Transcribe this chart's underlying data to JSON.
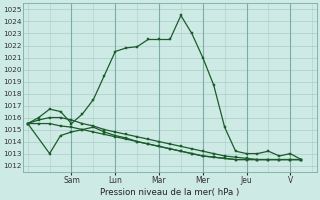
{
  "xlabel": "Pression niveau de la mer( hPa )",
  "ylim": [
    1011.5,
    1025.5
  ],
  "yticks": [
    1012,
    1013,
    1014,
    1015,
    1016,
    1017,
    1018,
    1019,
    1020,
    1021,
    1022,
    1023,
    1024,
    1025
  ],
  "bg_color": "#ceeae5",
  "line_color": "#1a5c2a",
  "grid_minor_color": "#aeccc8",
  "grid_major_color": "#7aada8",
  "day_labels": [
    "Sam",
    "Lun",
    "Mar",
    "Mer",
    "Jeu",
    "V"
  ],
  "day_tick_positions": [
    2,
    4,
    6,
    8,
    10,
    12
  ],
  "xlim": [
    -0.2,
    13.2
  ],
  "series": [
    {
      "x": [
        0,
        0.5,
        1,
        1.5,
        2,
        2.5,
        3,
        3.5,
        4,
        4.5,
        5,
        5.5,
        6,
        6.5,
        7,
        7.5,
        8,
        8.5,
        9,
        9.5,
        10,
        10.5,
        11,
        11.5,
        12,
        12.5
      ],
      "y": [
        1015.5,
        1016.0,
        1016.7,
        1016.5,
        1015.5,
        1016.3,
        1017.5,
        1019.5,
        1021.5,
        1021.8,
        1021.9,
        1022.5,
        1022.5,
        1022.5,
        1024.5,
        1023.0,
        1021.0,
        1018.7,
        1015.2,
        1013.2,
        1013.0,
        1013.0,
        1013.2,
        1012.8,
        1013.0,
        1012.5
      ]
    },
    {
      "x": [
        0,
        0.5,
        1,
        1.5,
        2,
        2.5,
        3,
        3.5,
        4,
        4.5,
        5,
        5.5,
        6,
        6.5,
        7,
        7.5,
        8,
        8.5,
        9,
        9.5,
        10,
        10.5,
        11,
        11.5,
        12,
        12.5
      ],
      "y": [
        1015.5,
        1015.5,
        1015.5,
        1015.3,
        1015.2,
        1015.0,
        1014.8,
        1014.6,
        1014.4,
        1014.2,
        1014.0,
        1013.8,
        1013.6,
        1013.4,
        1013.2,
        1013.0,
        1012.8,
        1012.7,
        1012.6,
        1012.5,
        1012.5,
        1012.5,
        1012.5,
        1012.5,
        1012.5,
        1012.5
      ]
    },
    {
      "x": [
        0,
        0.5,
        1,
        1.5,
        2,
        2.5,
        3,
        3.5,
        4,
        4.5,
        5,
        5.5,
        6,
        6.5,
        7,
        7.5,
        8,
        8.5,
        9,
        9.5,
        10,
        10.5,
        11,
        11.5,
        12,
        12.5
      ],
      "y": [
        1015.5,
        1015.8,
        1016.0,
        1016.0,
        1015.8,
        1015.5,
        1015.3,
        1015.0,
        1014.8,
        1014.6,
        1014.4,
        1014.2,
        1014.0,
        1013.8,
        1013.6,
        1013.4,
        1013.2,
        1013.0,
        1012.8,
        1012.7,
        1012.6,
        1012.5,
        1012.5,
        1012.5,
        1012.5,
        1012.5
      ]
    },
    {
      "x": [
        0,
        1,
        1.5,
        2,
        2.5,
        3,
        3.5,
        4,
        4.5,
        5,
        5.5,
        6,
        6.5,
        7,
        7.5,
        8,
        8.5,
        9,
        9.5,
        10,
        10.5,
        11,
        11.5,
        12,
        12.5
      ],
      "y": [
        1015.5,
        1013.0,
        1014.5,
        1014.8,
        1015.0,
        1015.2,
        1014.8,
        1014.5,
        1014.3,
        1014.0,
        1013.8,
        1013.6,
        1013.4,
        1013.2,
        1013.0,
        1012.8,
        1012.7,
        1012.6,
        1012.5,
        1012.5,
        1012.5,
        1012.5,
        1012.5,
        1012.5,
        1012.5
      ]
    }
  ]
}
